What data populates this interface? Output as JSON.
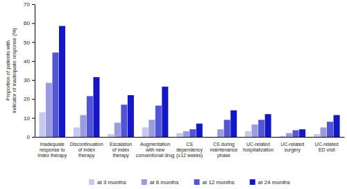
{
  "chart_data": {
    "type": "bar",
    "y_label": "Proportion of patients with\nindicator of inadequate response (%)",
    "categories": [
      "Inadequate\nresponse to\nindex therapy",
      "Discontinuation\nof index\ntherapy",
      "Escalation\nof index\ntherapy",
      "Augmentation\nwith new\nconventional drug",
      "CS\ndependency\n(≥12 weeks)",
      "CS during\nmaintenance\nphase",
      "UC-related\nhospitalization",
      "UC-related\nsurgery",
      "UC-related\nED visit"
    ],
    "series": [
      {
        "name": "at 3 months",
        "color": "#c6c8ee",
        "values": [
          13,
          5,
          1.5,
          5,
          2,
          0,
          3,
          0.5,
          1.5
        ]
      },
      {
        "name": "at 6 months",
        "color": "#9a9ce2",
        "values": [
          28.5,
          11.5,
          7.5,
          9,
          3,
          4,
          6.5,
          2,
          5
        ]
      },
      {
        "name": "at 12 months",
        "color": "#5256d6",
        "values": [
          44.5,
          21.5,
          17,
          16.5,
          4,
          9,
          9,
          3.5,
          8
        ]
      },
      {
        "name": "at 24 months",
        "color": "#1417c8",
        "values": [
          58.5,
          31.5,
          22,
          26.5,
          7,
          14,
          12,
          4,
          11.5
        ]
      }
    ],
    "ylim": [
      0,
      70
    ],
    "yticks": [
      0,
      10,
      20,
      30,
      40,
      50,
      60,
      70
    ],
    "grid": false,
    "legend": "bottom"
  }
}
